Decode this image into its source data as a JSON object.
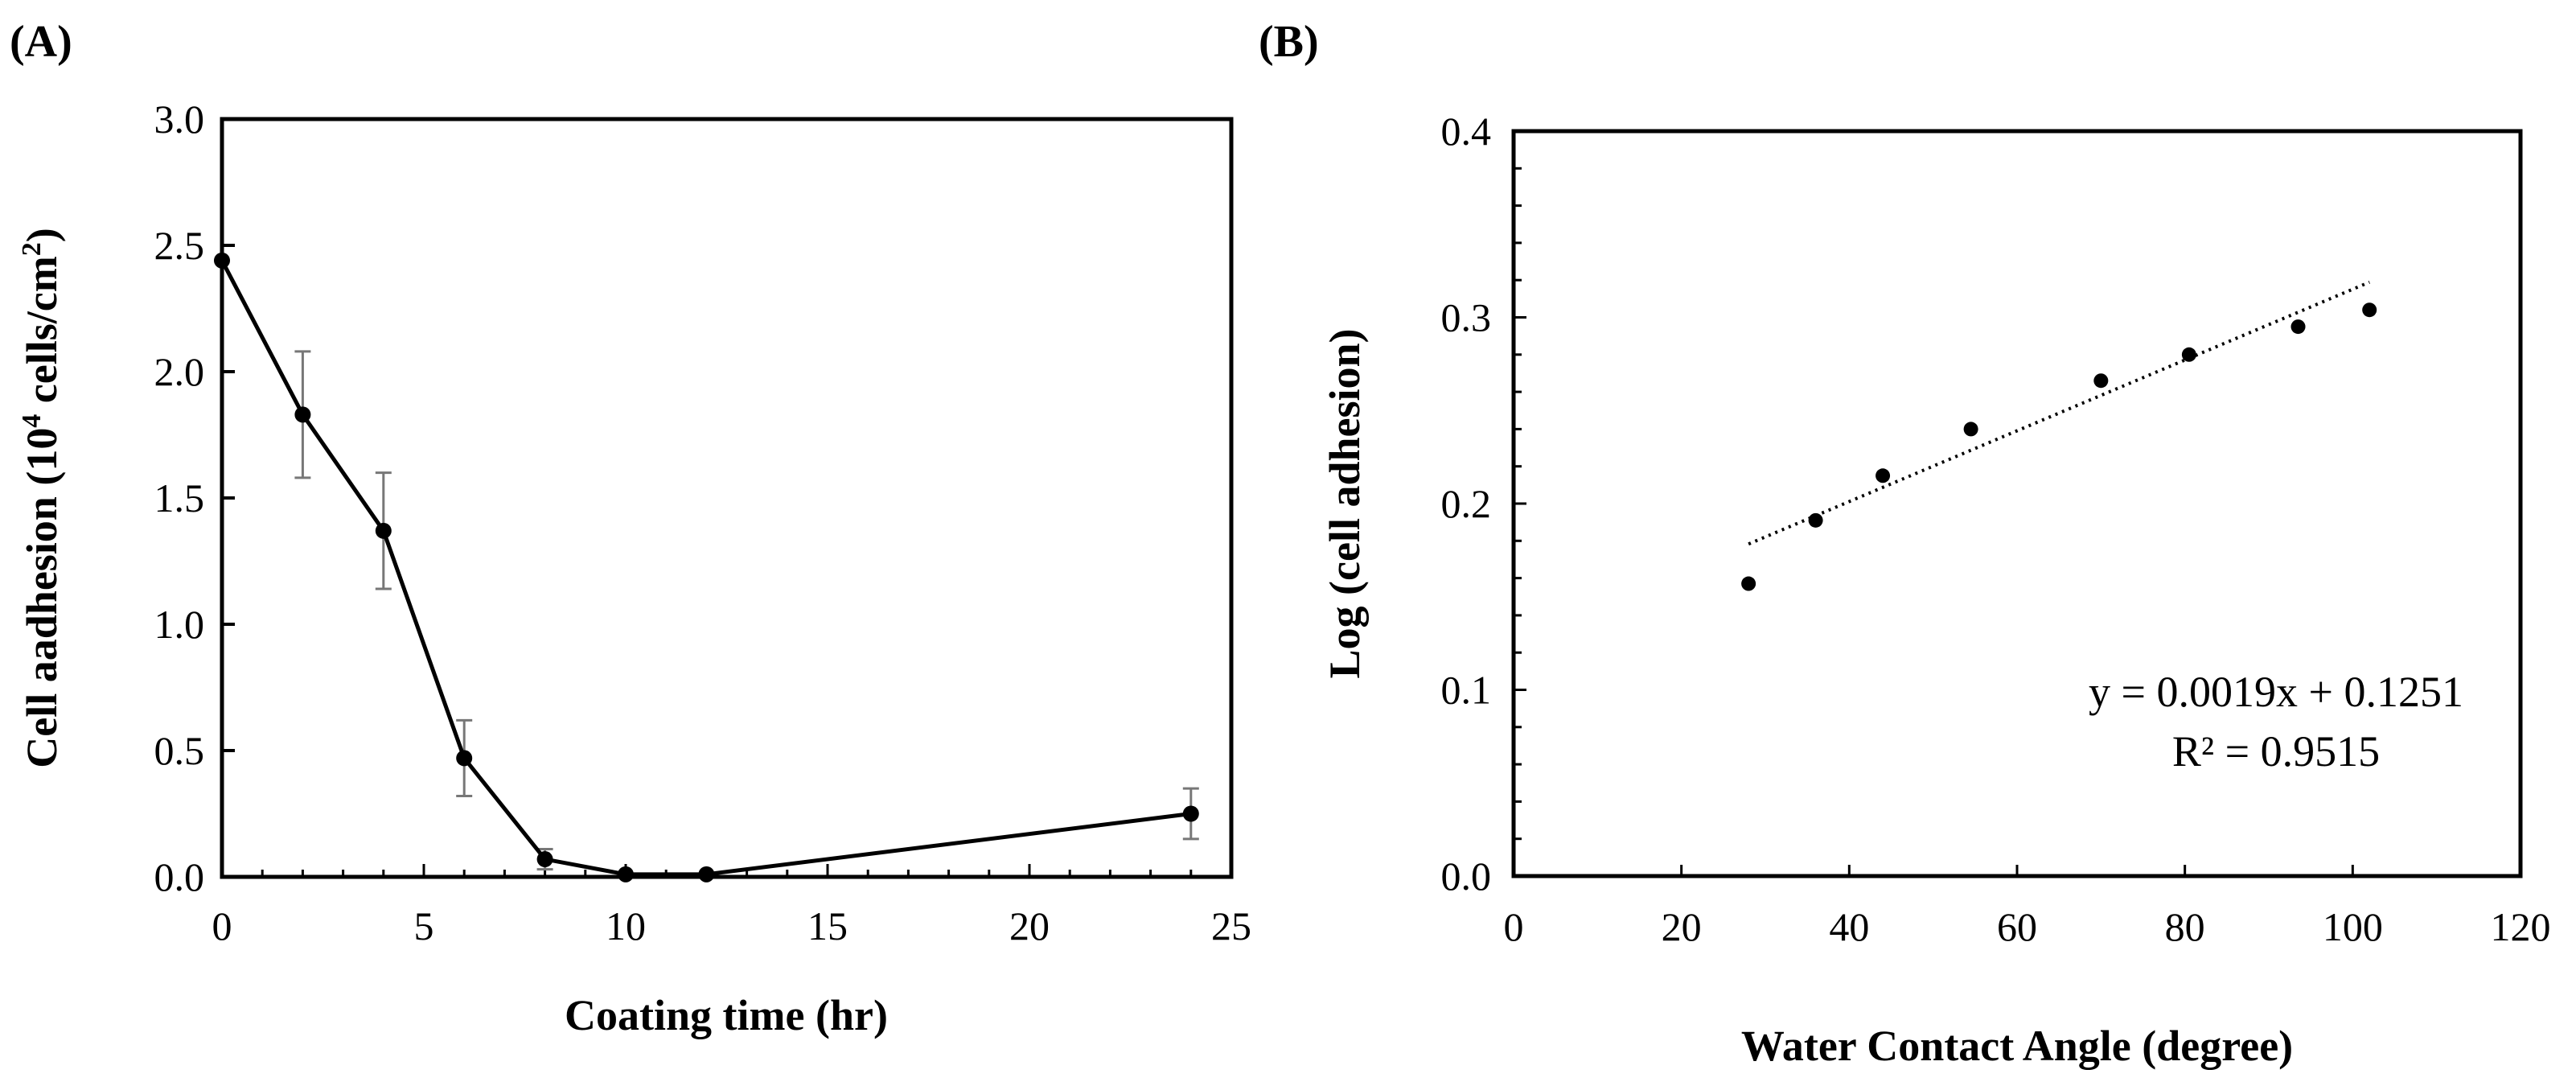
{
  "chart_data": [
    {
      "panel": "(A)",
      "type": "line",
      "title": "",
      "xlabel": "Coating time (hr)",
      "ylabel_main": "Cell aadhesion (10",
      "ylabel_sup": "4",
      "ylabel_mid": " cells/cm",
      "ylabel_sup2": "2",
      "ylabel_end": ")",
      "xlim": [
        0,
        25
      ],
      "ylim": [
        0,
        3.0
      ],
      "xticks": [
        0,
        5,
        10,
        15,
        20,
        25
      ],
      "xtick_labels": [
        "0",
        "5",
        "10",
        "15",
        "20",
        "25"
      ],
      "yticks": [
        0,
        0.5,
        1.0,
        1.5,
        2.0,
        2.5,
        3.0
      ],
      "ytick_labels": [
        "0.0",
        "0.5",
        "1.0",
        "1.5",
        "2.0",
        "2.5",
        "3.0"
      ],
      "series": [
        {
          "name": "Cell adhesion",
          "x": [
            0,
            2,
            4,
            6,
            8,
            10,
            12,
            24
          ],
          "y": [
            2.44,
            1.83,
            1.37,
            0.47,
            0.07,
            0.01,
            0.01,
            0.25
          ],
          "error": [
            0.0,
            0.25,
            0.23,
            0.15,
            0.04,
            0.0,
            0.0,
            0.1
          ]
        }
      ],
      "grid": false
    },
    {
      "panel": "(B)",
      "type": "scatter",
      "title": "",
      "xlabel": "Water Contact Angle (degree)",
      "ylabel": "Log (cell adhesion)",
      "xlim": [
        0,
        120
      ],
      "ylim": [
        0,
        0.4
      ],
      "xticks": [
        0,
        20,
        40,
        60,
        80,
        100,
        120
      ],
      "xtick_labels": [
        "0",
        "20",
        "40",
        "60",
        "80",
        "100",
        "120"
      ],
      "yticks": [
        0,
        0.1,
        0.2,
        0.3,
        0.4
      ],
      "ytick_labels": [
        "0.0",
        "0.1",
        "0.2",
        "0.3",
        "0.4"
      ],
      "series": [
        {
          "name": "Log (cell adhesion)",
          "x": [
            28,
            36,
            44,
            54.5,
            70,
            80.5,
            93.5,
            102
          ],
          "y": [
            0.157,
            0.191,
            0.215,
            0.24,
            0.266,
            0.28,
            0.295,
            0.304
          ]
        }
      ],
      "trendline": {
        "slope": 0.0019,
        "intercept": 0.1251,
        "x_range": [
          28,
          102
        ],
        "style": "dotted"
      },
      "equation": "y = 0.0019x + 0.1251",
      "r_squared": "R² = 0.9515",
      "grid": false
    }
  ]
}
